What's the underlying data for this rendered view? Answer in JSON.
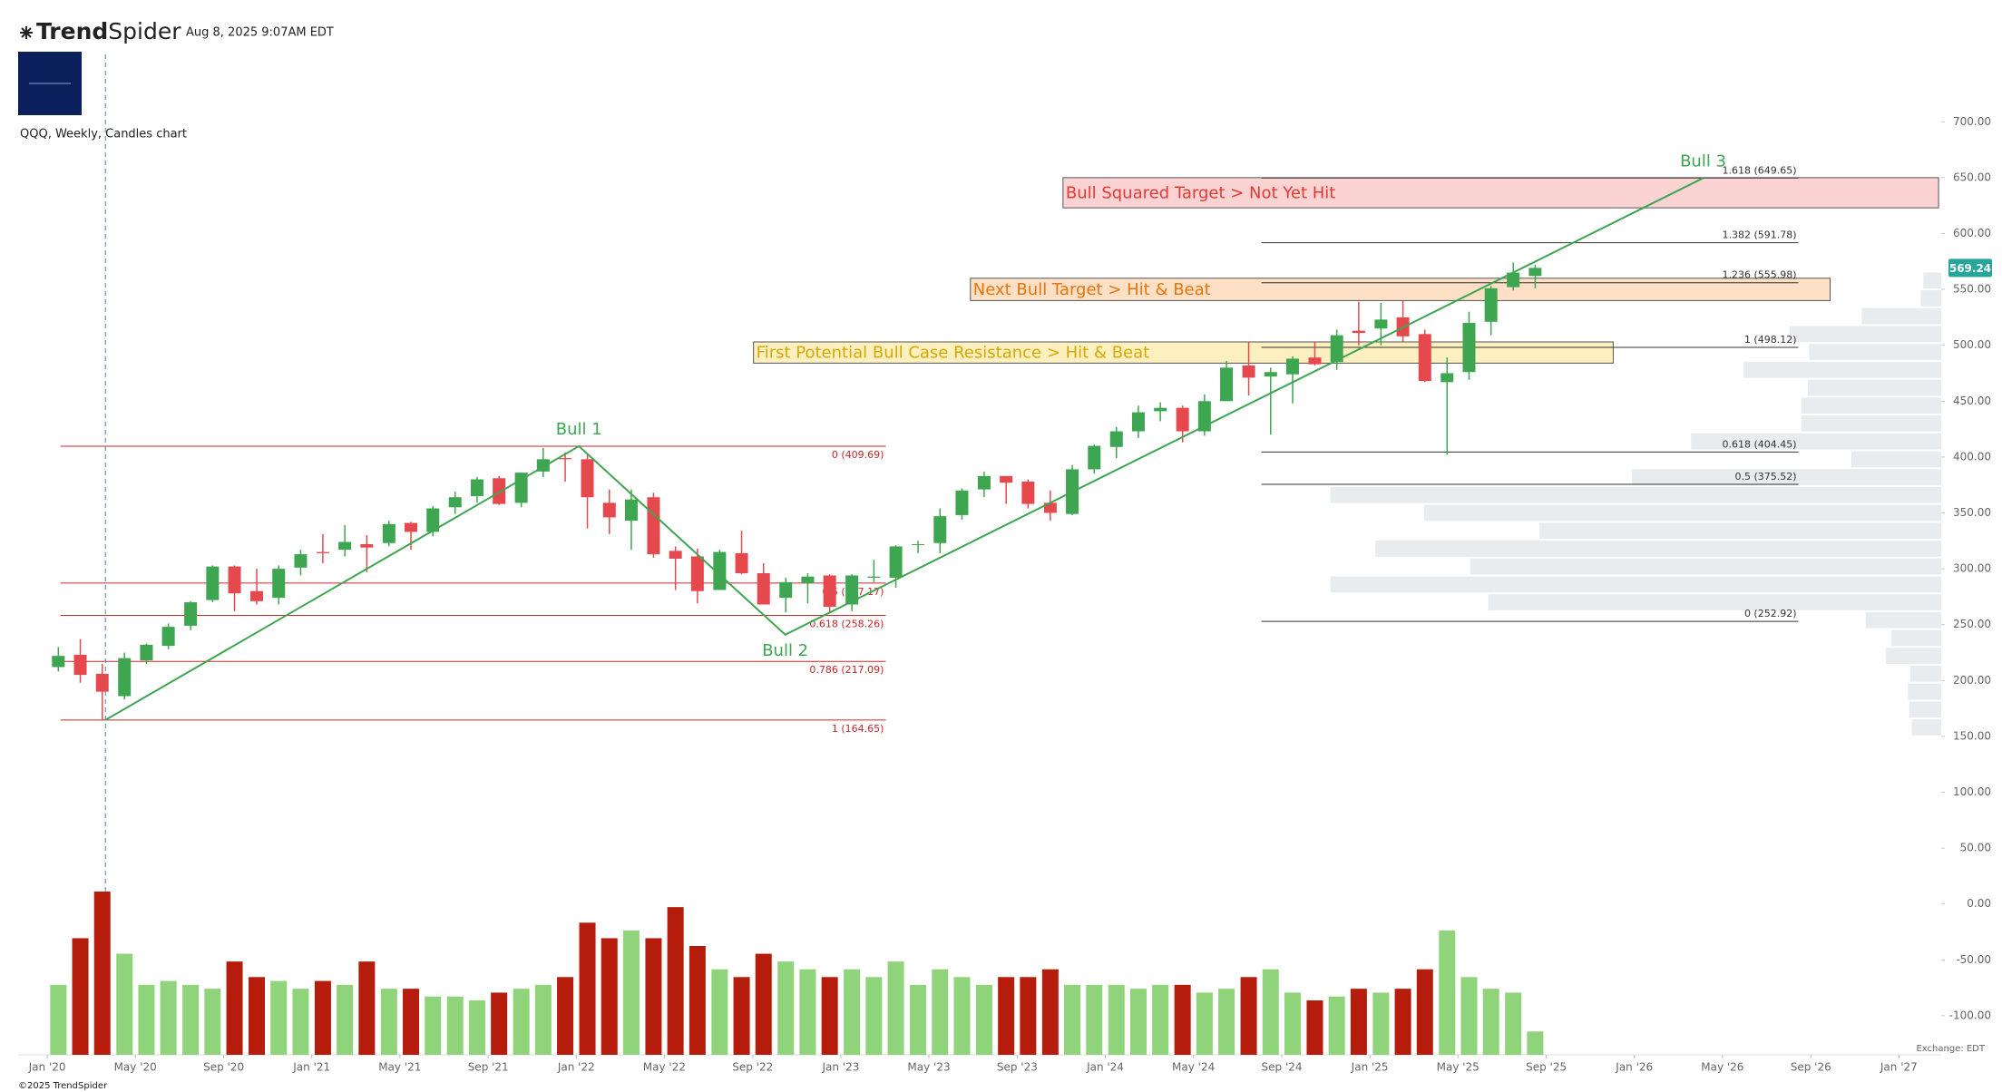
{
  "header": {
    "brand_bold": "Trend",
    "brand_light": "Spider",
    "timestamp": "Aug 8, 2025 9:07AM EDT"
  },
  "footer": {
    "copyright": "©2025 TrendSpider",
    "exchange": "Exchange: EDT"
  },
  "chart_data": {
    "type": "candlestick",
    "title": "QQQ, Weekly, Candles chart",
    "x": [
      2020.042,
      2020.125,
      2020.208,
      2020.292,
      2020.375,
      2020.458,
      2020.542,
      2020.625,
      2020.708,
      2020.792,
      2020.875,
      2020.958,
      2021.042,
      2021.125,
      2021.208,
      2021.292,
      2021.375,
      2021.458,
      2021.542,
      2021.625,
      2021.708,
      2021.792,
      2021.875,
      2021.958,
      2022.042,
      2022.125,
      2022.208,
      2022.292,
      2022.375,
      2022.458,
      2022.542,
      2022.625,
      2022.708,
      2022.792,
      2022.875,
      2022.958,
      2023.042,
      2023.125,
      2023.208,
      2023.292,
      2023.375,
      2023.458,
      2023.542,
      2023.625,
      2023.708,
      2023.792,
      2023.875,
      2023.958,
      2024.042,
      2024.125,
      2024.208,
      2024.292,
      2024.375,
      2024.458,
      2024.542,
      2024.625,
      2024.708,
      2024.792,
      2024.875,
      2024.958,
      2025.042,
      2025.125,
      2025.208,
      2025.292,
      2025.375,
      2025.458,
      2025.542,
      2025.625
    ],
    "open": [
      212,
      223,
      206,
      186,
      218,
      231,
      249,
      272,
      302,
      280,
      274,
      301,
      315,
      317,
      322,
      323,
      341,
      333,
      355,
      365,
      381,
      359,
      387,
      399,
      398,
      359,
      343,
      364,
      316,
      311,
      281,
      314,
      296,
      274,
      287,
      294,
      268,
      292,
      292,
      322,
      323,
      348,
      371,
      383,
      378,
      359,
      349,
      389,
      409,
      423,
      441,
      444,
      423,
      450,
      482,
      472,
      474,
      489,
      485,
      513,
      515,
      525,
      510,
      467,
      476,
      521,
      552,
      562
    ],
    "high": [
      230,
      237,
      215,
      225,
      233,
      251,
      271,
      303,
      303,
      300,
      303,
      317,
      331,
      339,
      330,
      343,
      342,
      356,
      369,
      382,
      383,
      386,
      408,
      404,
      403,
      371,
      371,
      368,
      320,
      318,
      317,
      334,
      305,
      292,
      296,
      295,
      295,
      308,
      321,
      325,
      354,
      372,
      387,
      383,
      380,
      370,
      393,
      411,
      427,
      446,
      449,
      446,
      456,
      486,
      503,
      480,
      490,
      503,
      514,
      539,
      538,
      540,
      514,
      489,
      530,
      553,
      574,
      572
    ],
    "low": [
      208,
      198,
      165,
      183,
      215,
      228,
      245,
      270,
      262,
      268,
      268,
      294,
      305,
      311,
      297,
      320,
      317,
      329,
      349,
      359,
      357,
      355,
      382,
      378,
      336,
      331,
      317,
      310,
      281,
      269,
      281,
      295,
      268,
      261,
      269,
      260,
      262,
      288,
      283,
      314,
      314,
      344,
      364,
      358,
      354,
      343,
      348,
      385,
      399,
      417,
      432,
      413,
      419,
      450,
      455,
      420,
      448,
      482,
      478,
      500,
      500,
      503,
      467,
      402,
      469,
      509,
      549,
      551
    ],
    "close": [
      222,
      205,
      190,
      220,
      232,
      248,
      270,
      302,
      278,
      271,
      300,
      313,
      314,
      324,
      319,
      340,
      333,
      354,
      364,
      380,
      358,
      386,
      398,
      398,
      364,
      346,
      362,
      313,
      309,
      280,
      315,
      296,
      268,
      288,
      293,
      266,
      294,
      293,
      320,
      322,
      347,
      370,
      383,
      377,
      358,
      350,
      389,
      410,
      423,
      440,
      444,
      423,
      450,
      480,
      471,
      476,
      488,
      483,
      509,
      511,
      523,
      508,
      468,
      475,
      520,
      551,
      565,
      569.24
    ],
    "up_color": "#3ea651",
    "down_color": "#e5484d",
    "volume": {
      "values": [
        900,
        1500,
        2100,
        1300,
        900,
        950,
        900,
        850,
        1200,
        1000,
        950,
        850,
        950,
        900,
        1200,
        850,
        850,
        750,
        750,
        700,
        800,
        850,
        900,
        1000,
        1700,
        1500,
        1600,
        1500,
        1900,
        1400,
        1100,
        1000,
        1300,
        1200,
        1100,
        1000,
        1100,
        1000,
        1200,
        900,
        1100,
        1000,
        900,
        1000,
        1000,
        1100,
        900,
        900,
        900,
        850,
        900,
        900,
        800,
        850,
        1000,
        1100,
        800,
        700,
        750,
        850,
        800,
        850,
        1100,
        1600,
        1000,
        850,
        800,
        300
      ],
      "lim": [
        0,
        2100
      ],
      "up_color": "#8fd47b",
      "down_color": "#b51c0c"
    },
    "xlim": [
      2019.89,
      2027.16
    ],
    "xticks": [
      {
        "value": 2020,
        "label": "Jan '20"
      },
      {
        "value": 2020.333,
        "label": "May '20"
      },
      {
        "value": 2020.667,
        "label": "Sep '20"
      },
      {
        "value": 2021,
        "label": "Jan '21"
      },
      {
        "value": 2021.333,
        "label": "May '21"
      },
      {
        "value": 2021.667,
        "label": "Sep '21"
      },
      {
        "value": 2022,
        "label": "Jan '22"
      },
      {
        "value": 2022.333,
        "label": "May '22"
      },
      {
        "value": 2022.667,
        "label": "Sep '22"
      },
      {
        "value": 2023,
        "label": "Jan '23"
      },
      {
        "value": 2023.333,
        "label": "May '23"
      },
      {
        "value": 2023.667,
        "label": "Sep '23"
      },
      {
        "value": 2024,
        "label": "Jan '24"
      },
      {
        "value": 2024.333,
        "label": "May '24"
      },
      {
        "value": 2024.667,
        "label": "Sep '24"
      },
      {
        "value": 2025,
        "label": "Jan '25"
      },
      {
        "value": 2025.333,
        "label": "May '25"
      },
      {
        "value": 2025.667,
        "label": "Sep '25"
      },
      {
        "value": 2026,
        "label": "Jan '26"
      },
      {
        "value": 2026.333,
        "label": "May '26"
      },
      {
        "value": 2026.667,
        "label": "Sep '26"
      },
      {
        "value": 2027,
        "label": "Jan '27"
      }
    ],
    "ylim": [
      -135,
      740
    ],
    "yticks": [
      {
        "value": 700,
        "label": "700.00"
      },
      {
        "value": 650,
        "label": "650.00"
      },
      {
        "value": 600,
        "label": "600.00"
      },
      {
        "value": 550,
        "label": "550.00"
      },
      {
        "value": 500,
        "label": "500.00"
      },
      {
        "value": 450,
        "label": "450.00"
      },
      {
        "value": 400,
        "label": "400.00"
      },
      {
        "value": 350,
        "label": "350.00"
      },
      {
        "value": 300,
        "label": "300.00"
      },
      {
        "value": 250,
        "label": "250.00"
      },
      {
        "value": 200,
        "label": "200.00"
      },
      {
        "value": 150,
        "label": "150.00"
      },
      {
        "value": 100,
        "label": "100.00"
      },
      {
        "value": 50,
        "label": "50.00"
      },
      {
        "value": 0,
        "label": "0.00"
      },
      {
        "value": -50,
        "label": "-50.00"
      },
      {
        "value": -100,
        "label": "-100.00"
      }
    ],
    "last_price": {
      "value": 569.24,
      "label": "569.24",
      "color": "#26a69a"
    },
    "volume_profile": {
      "bins": [
        150,
        166,
        182,
        198,
        214,
        230,
        246,
        262,
        278,
        294,
        310,
        326,
        342,
        358,
        374,
        390,
        406,
        422,
        438,
        454,
        470,
        486,
        502,
        518,
        534,
        550,
        566
      ],
      "values": [
        23,
        25,
        26,
        24,
        43,
        39,
        59,
        353,
        476,
        367,
        441,
        313,
        403,
        476,
        241,
        70,
        195,
        109,
        109,
        104,
        154,
        103,
        118,
        62,
        16,
        14
      ],
      "color": "#e9ecee"
    },
    "fib_left": {
      "color": "#c62828",
      "x": [
        2020.05,
        2023.17
      ],
      "levels": [
        {
          "value": 409.69,
          "label": "0 (409.69)"
        },
        {
          "value": 287.17,
          "label": "0.5 (287.17)"
        },
        {
          "value": 258.26,
          "label": "0.618 (258.26)"
        },
        {
          "value": 217.09,
          "label": "0.786 (217.09)"
        },
        {
          "value": 164.65,
          "label": "1 (164.65)"
        }
      ]
    },
    "fib_right": {
      "color": "#333333",
      "x": [
        2024.59,
        2026.62
      ],
      "levels": [
        {
          "value": 649.65,
          "label": "1.618 (649.65)"
        },
        {
          "value": 591.78,
          "label": "1.382 (591.78)"
        },
        {
          "value": 555.98,
          "label": "1.236 (555.98)"
        },
        {
          "value": 498.12,
          "label": "1 (498.12)"
        },
        {
          "value": 404.45,
          "label": "0.618 (404.45)"
        },
        {
          "value": 375.52,
          "label": "0.5 (375.52)"
        },
        {
          "value": 252.92,
          "label": "0 (252.92)"
        }
      ]
    },
    "zones": [
      {
        "label": "Bull Squared Target > Not Yet Hit",
        "x": [
          2023.84,
          2027.15
        ],
        "y": [
          623,
          650
        ],
        "fill": "#fbd3d3",
        "text_color": "#e53935"
      },
      {
        "label": "Next Bull Target > Hit & Beat",
        "x": [
          2023.49,
          2026.74
        ],
        "y": [
          540,
          560
        ],
        "fill": "#fde0c5",
        "text_color": "#e8740c"
      },
      {
        "label": "First Potential Bull Case Resistance > Hit & Beat",
        "x": [
          2022.67,
          2025.92
        ],
        "y": [
          484,
          503
        ],
        "fill": "#fcefc0",
        "text_color": "#d9a800"
      }
    ],
    "wave": {
      "x": [
        2020.22,
        2022.01,
        2022.79,
        2026.26
      ],
      "y": [
        164.65,
        409.69,
        241,
        649.65
      ],
      "labels": [
        null,
        "Bull 1",
        "Bull 2",
        "Bull 3"
      ],
      "color": "#3ea651"
    }
  }
}
